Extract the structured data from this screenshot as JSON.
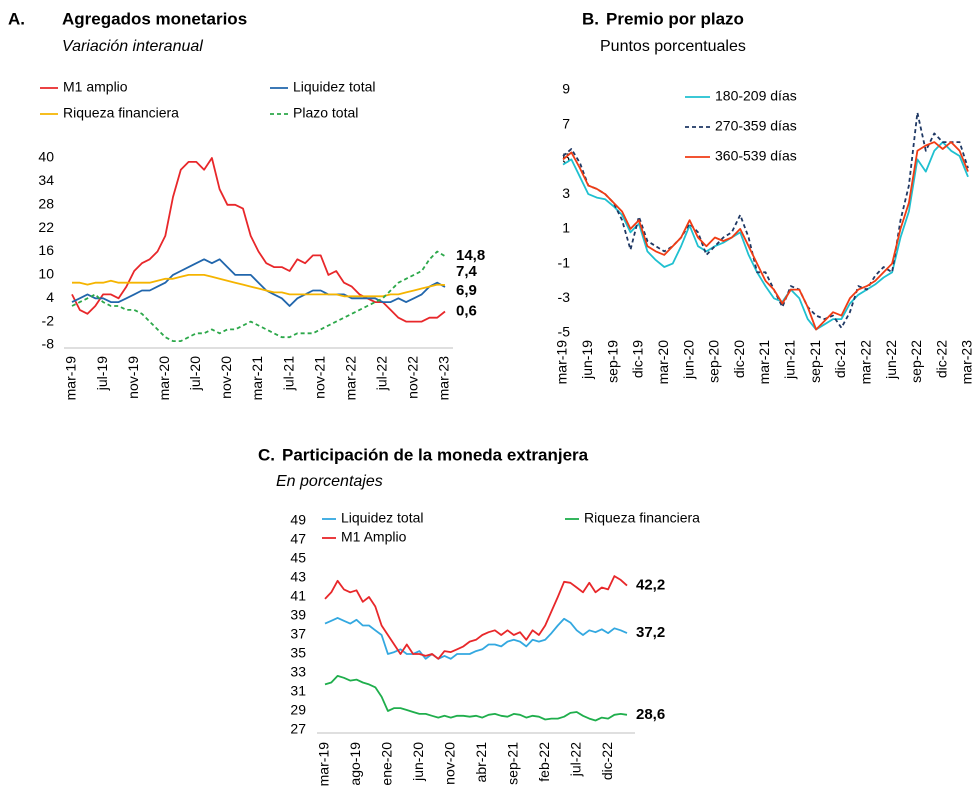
{
  "chart_data": [
    {
      "type": "line",
      "label": "A.",
      "title": "Agregados monetarios",
      "subtitle": "Variación interanual",
      "categories": [
        "mar-19",
        null,
        null,
        null,
        "jul-19",
        null,
        null,
        null,
        "nov-19",
        null,
        null,
        null,
        "mar-20",
        null,
        null,
        null,
        "jul-20",
        null,
        null,
        null,
        "nov-20",
        null,
        null,
        null,
        "mar-21",
        null,
        null,
        null,
        "jul-21",
        null,
        null,
        null,
        "nov-21",
        null,
        null,
        null,
        "mar-22",
        null,
        null,
        null,
        "jul-22",
        null,
        null,
        null,
        "nov-22",
        null,
        null,
        null,
        "mar-23"
      ],
      "ylim": [
        -8,
        40
      ],
      "yticks": [
        -8,
        -2,
        4,
        10,
        16,
        22,
        28,
        34,
        40
      ],
      "series": [
        {
          "name": "M1 amplio",
          "color": "#e8272a",
          "values": [
            5,
            1,
            0,
            2,
            5,
            5,
            4,
            7,
            11,
            13,
            14,
            16,
            20,
            30,
            37,
            39,
            39,
            37,
            40,
            32,
            28,
            28,
            27,
            20,
            16,
            13,
            12,
            12,
            11,
            14,
            13,
            15,
            15,
            10,
            11,
            8,
            7,
            5,
            4,
            3,
            3,
            1,
            -1,
            -2,
            -2,
            -2,
            -1,
            -1,
            0.6
          ],
          "value_labels": {
            "48": "0,6"
          }
        },
        {
          "name": "Liquidez total",
          "color": "#2166ac",
          "values": [
            3,
            4,
            5,
            4,
            4,
            3,
            3,
            4,
            5,
            6,
            6,
            7,
            8,
            10,
            11,
            12,
            13,
            14,
            13,
            14,
            12,
            10,
            10,
            10,
            8,
            6,
            5,
            4,
            2,
            4,
            5,
            6,
            6,
            5,
            5,
            5,
            4,
            4,
            4,
            4,
            3,
            3,
            4,
            3,
            4,
            5,
            7,
            8,
            6.9
          ],
          "value_labels": {
            "48": "6,9"
          }
        },
        {
          "name": "Riqueza financiera",
          "color": "#f5b400",
          "values": [
            8,
            8,
            7.5,
            8,
            8,
            8.5,
            8,
            8,
            8,
            8,
            8,
            8.5,
            9,
            9,
            9.5,
            10,
            10,
            10,
            9.5,
            9,
            8.5,
            8,
            7.5,
            7,
            6.5,
            6,
            5.5,
            5.5,
            5,
            5,
            5,
            5,
            5,
            5,
            5,
            4.5,
            4.5,
            4.5,
            4.5,
            4.5,
            4.5,
            5,
            5,
            5.5,
            6,
            6.5,
            7,
            7.5,
            7.4
          ],
          "value_labels": {
            "48": "7,4"
          }
        },
        {
          "name": "Plazo total",
          "color": "#2ca84a",
          "dashed": true,
          "values": [
            2,
            3,
            4,
            5,
            3,
            2,
            2,
            1,
            1,
            0,
            -2,
            -4,
            -6,
            -7,
            -7,
            -6,
            -5,
            -5,
            -4,
            -5,
            -4,
            -4,
            -3,
            -2,
            -3,
            -4,
            -5,
            -6,
            -6,
            -5,
            -5,
            -5,
            -4,
            -3,
            -2,
            -1,
            0,
            1,
            2,
            3,
            4,
            6,
            8,
            9,
            10,
            11,
            14,
            16,
            14.8
          ],
          "value_labels": {
            "48": "14,8"
          }
        }
      ]
    },
    {
      "type": "line",
      "label": "B.",
      "title": "Premio por plazo",
      "subtitle": "Puntos porcentuales",
      "categories": [
        "mar-19",
        null,
        null,
        "jun-19",
        null,
        null,
        "sep-19",
        null,
        null,
        "dic-19",
        null,
        null,
        "mar-20",
        null,
        null,
        "jun-20",
        null,
        null,
        "sep-20",
        null,
        null,
        "dic-20",
        null,
        null,
        "mar-21",
        null,
        null,
        "jun-21",
        null,
        null,
        "sep-21",
        null,
        null,
        "dic-21",
        null,
        null,
        "mar-22",
        null,
        null,
        "jun-22",
        null,
        null,
        "sep-22",
        null,
        null,
        "dic-22",
        null,
        null,
        "mar-23"
      ],
      "ylim": [
        -5,
        9
      ],
      "yticks": [
        -5,
        -3,
        -1,
        1,
        3,
        5,
        7,
        9
      ],
      "series": [
        {
          "name": "180-209 días",
          "color": "#1fc0d0",
          "values": [
            4.7,
            5,
            4,
            3,
            2.8,
            2.7,
            2.3,
            1.8,
            0.8,
            1.3,
            -0.3,
            -0.8,
            -1.2,
            -1,
            0,
            1.2,
            0,
            -0.3,
            0,
            0.2,
            0.5,
            0.8,
            -0.5,
            -1.5,
            -2.3,
            -3,
            -3.2,
            -2.5,
            -3,
            -4.2,
            -4.8,
            -4.5,
            -4.2,
            -4.2,
            -3.3,
            -2.8,
            -2.5,
            -2.2,
            -1.8,
            -1.5,
            0.5,
            2,
            5,
            4.3,
            5.5,
            6,
            5.5,
            5.2,
            4
          ]
        },
        {
          "name": "270-359 días",
          "color": "#1f3864",
          "dashed": true,
          "values": [
            5.2,
            5.6,
            4.8,
            3.5,
            3.3,
            3,
            2.5,
            1.5,
            -0.2,
            1.7,
            0.3,
            0,
            -0.3,
            0,
            0.5,
            1.3,
            0.8,
            -0.5,
            0,
            0.5,
            0.8,
            1.8,
            0.5,
            -1.5,
            -1.5,
            -2.5,
            -3.5,
            -2.3,
            -2.5,
            -3.5,
            -4,
            -4.2,
            -4,
            -4.7,
            -3.8,
            -2.3,
            -2.5,
            -1.7,
            -1.2,
            -1.5,
            1.5,
            3.5,
            7.7,
            5.5,
            6.5,
            6,
            6,
            6,
            4.5
          ]
        },
        {
          "name": "360-539 días",
          "color": "#f03c14",
          "values": [
            5,
            5.4,
            4.5,
            3.5,
            3.3,
            3,
            2.5,
            2,
            1,
            1.5,
            0,
            -0.3,
            -0.5,
            0,
            0.5,
            1.5,
            0.5,
            0,
            0.5,
            0.3,
            0.5,
            1,
            0,
            -1,
            -2,
            -2.5,
            -3.3,
            -2.5,
            -2.5,
            -3.5,
            -4.8,
            -4.3,
            -3.8,
            -4,
            -3,
            -2.5,
            -2.3,
            -2,
            -1.5,
            -1,
            1,
            2.5,
            5.5,
            5.8,
            6,
            5.6,
            6,
            5.5,
            4.3
          ]
        }
      ]
    },
    {
      "type": "line",
      "label": "C.",
      "title": "Participación de la moneda extranjera",
      "subtitle": "En porcentajes",
      "categories": [
        "mar-19",
        null,
        null,
        null,
        null,
        "ago-19",
        null,
        null,
        null,
        null,
        "ene-20",
        null,
        null,
        null,
        null,
        "jun-20",
        null,
        null,
        null,
        null,
        "nov-20",
        null,
        null,
        null,
        null,
        "abr-21",
        null,
        null,
        null,
        null,
        "sep-21",
        null,
        null,
        null,
        null,
        "feb-22",
        null,
        null,
        null,
        null,
        "jul-22",
        null,
        null,
        null,
        null,
        "dic-22",
        null,
        null,
        null
      ],
      "ylim": [
        27,
        49
      ],
      "yticks": [
        27,
        29,
        31,
        33,
        35,
        37,
        39,
        41,
        43,
        45,
        47,
        49
      ],
      "series": [
        {
          "name": "Liquidez total",
          "color": "#33a8e0",
          "values": [
            38.2,
            38.5,
            38.8,
            38.5,
            38.2,
            38.6,
            38,
            38,
            37.5,
            37,
            35,
            35.2,
            35.5,
            35,
            35,
            35.3,
            34.5,
            35,
            34.5,
            34.8,
            34.5,
            35,
            35,
            35,
            35.3,
            35.5,
            36,
            36,
            35.8,
            36.3,
            36.5,
            36.3,
            35.8,
            36.5,
            36.3,
            36.5,
            37.2,
            38,
            38.7,
            38.3,
            37.5,
            37,
            37.5,
            37.3,
            37.6,
            37.2,
            37.7,
            37.5,
            37.2
          ],
          "value_labels": {
            "48": "37,2"
          }
        },
        {
          "name": "M1 Amplio",
          "color": "#e8272a",
          "values": [
            40.8,
            41.5,
            42.7,
            41.8,
            41.5,
            41.7,
            40.5,
            41,
            40,
            38,
            37,
            36,
            35,
            36,
            35,
            35,
            34.8,
            35,
            34.5,
            35.3,
            35.2,
            35.5,
            35.8,
            36.3,
            36.5,
            37,
            37.3,
            37.5,
            37,
            37.5,
            37,
            37.3,
            36.5,
            37.5,
            37,
            38,
            39.5,
            41,
            42.6,
            42.5,
            42,
            41.5,
            42.5,
            41.5,
            42,
            41.8,
            43.2,
            42.8,
            42.2
          ],
          "value_labels": {
            "48": "42,2"
          }
        },
        {
          "name": "Riqueza financiera",
          "color": "#1fae4c",
          "values": [
            31.8,
            32,
            32.7,
            32.5,
            32.2,
            32.3,
            32,
            31.8,
            31.5,
            30.5,
            29,
            29.3,
            29.3,
            29.1,
            28.9,
            28.7,
            28.7,
            28.5,
            28.3,
            28.5,
            28.3,
            28.5,
            28.5,
            28.4,
            28.5,
            28.3,
            28.6,
            28.7,
            28.5,
            28.4,
            28.7,
            28.6,
            28.3,
            28.5,
            28.4,
            28.1,
            28.2,
            28.2,
            28.4,
            28.8,
            28.9,
            28.5,
            28.2,
            28,
            28.3,
            28.2,
            28.6,
            28.7,
            28.6
          ],
          "value_labels": {
            "48": "28,6"
          }
        }
      ]
    }
  ]
}
